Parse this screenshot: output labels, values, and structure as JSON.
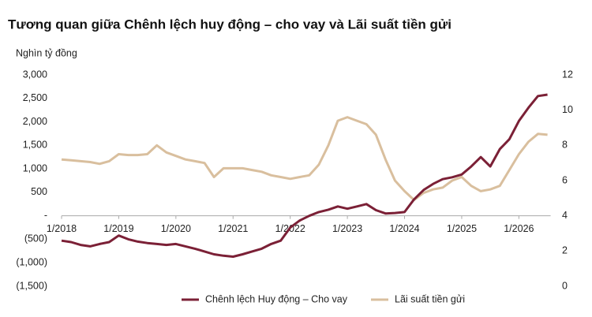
{
  "chart_data": {
    "type": "line",
    "title": "Tương quan giữa Chênh lệch huy động – cho vay và Lãi suất tiền gửi",
    "y_label": "Nghìn tỷ đồng",
    "categories": [
      "1/2018",
      null,
      null,
      null,
      null,
      null,
      "1/2019",
      null,
      null,
      null,
      null,
      null,
      "1/2020",
      null,
      null,
      null,
      null,
      null,
      "1/2021",
      null,
      null,
      null,
      null,
      null,
      "1/2022",
      null,
      null,
      null,
      null,
      null,
      "1/2023",
      null,
      null,
      null,
      null,
      null,
      "1/2024",
      null,
      null,
      null,
      null,
      null,
      "1/2025",
      null,
      null,
      null,
      null,
      null,
      "1/2026",
      null,
      null,
      null
    ],
    "series": [
      {
        "name": "Chênh lệch Huy động – Cho vay",
        "color": "#7b2036",
        "values": [
          -530,
          -560,
          -620,
          -650,
          -600,
          -560,
          -420,
          -500,
          -550,
          -580,
          -600,
          -620,
          -600,
          -650,
          -700,
          -760,
          -820,
          -850,
          -870,
          -820,
          -760,
          -700,
          -600,
          -530,
          -250,
          -100,
          0,
          80,
          130,
          200,
          150,
          200,
          250,
          120,
          50,
          60,
          80,
          350,
          550,
          680,
          780,
          820,
          880,
          1050,
          1250,
          1050,
          1420,
          1630,
          2020,
          2300,
          2550,
          2580
        ]
      },
      {
        "name": "Lãi suất tiền gửi",
        "color": "#d9bf9e",
        "axis": "y2",
        "values": [
          7.2,
          7.15,
          7.1,
          7.05,
          6.95,
          7.1,
          7.5,
          7.45,
          7.45,
          7.5,
          8.0,
          7.6,
          7.4,
          7.2,
          7.1,
          7.0,
          6.2,
          6.7,
          6.7,
          6.7,
          6.6,
          6.5,
          6.3,
          6.2,
          6.1,
          6.2,
          6.3,
          6.9,
          8.0,
          9.4,
          9.6,
          9.4,
          9.2,
          8.6,
          7.2,
          6.0,
          5.4,
          4.9,
          5.3,
          5.5,
          5.6,
          6.0,
          6.2,
          5.7,
          5.4,
          5.5,
          5.7,
          6.6,
          7.5,
          8.2,
          8.65,
          8.6
        ]
      }
    ],
    "ylim": [
      -1500,
      3000
    ],
    "yticks": [
      {
        "value": 3000,
        "label": "3,000"
      },
      {
        "value": 2500,
        "label": "2,500"
      },
      {
        "value": 2000,
        "label": "2,000"
      },
      {
        "value": 1500,
        "label": "1,500"
      },
      {
        "value": 1000,
        "label": "1,000"
      },
      500,
      {
        "value": 0,
        "label": "-"
      },
      {
        "value": -500,
        "label": "(500)"
      },
      {
        "value": -1000,
        "label": "(1,000)"
      },
      {
        "value": -1500,
        "label": "(1,500)"
      }
    ],
    "y2lim": [
      0,
      12
    ],
    "y2ticks": [
      12,
      10,
      8,
      6,
      4,
      2,
      0
    ],
    "legend": "bottom"
  }
}
